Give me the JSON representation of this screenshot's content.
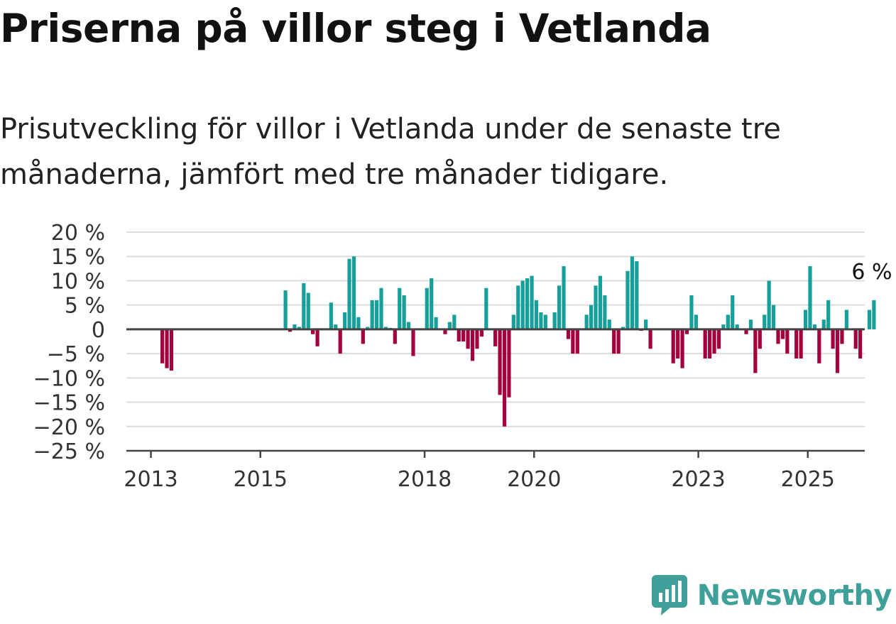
{
  "header": {
    "title": "Priserna på villor steg i Vetlanda",
    "subtitle": "Prisutveckling för villor i Vetlanda under de senaste tre månaderna, jämfört med tre månader tidigare."
  },
  "brand": {
    "name": "Newsworthy",
    "icon": "newsworthy-logo-icon"
  },
  "colors": {
    "positive": "#16a099",
    "negative": "#a3003d",
    "grid": "#dcdcdc",
    "axis": "#444444"
  },
  "chart_data": {
    "type": "bar",
    "title": "Priserna på villor steg i Vetlanda",
    "ylabel": "",
    "xlabel": "",
    "ylim": [
      -25,
      20
    ],
    "yticks": [
      20,
      15,
      10,
      5,
      0,
      -5,
      -10,
      -15,
      -20,
      -25
    ],
    "ytick_labels": [
      "20 %",
      "15 %",
      "10 %",
      "5 %",
      "0",
      "−5 %",
      "−10 %",
      "−15 %",
      "−20 %",
      "−25 %"
    ],
    "xticks": [
      2013,
      2015,
      2018,
      2020,
      2023,
      2025
    ],
    "xtick_labels": [
      "2013",
      "2015",
      "2018",
      "2020",
      "2023",
      "2025"
    ],
    "grid": true,
    "last_value_label": "6 %",
    "x_start": "2012-10",
    "period": "month",
    "values": [
      null,
      null,
      null,
      null,
      null,
      -7,
      -8,
      -8.5,
      null,
      null,
      null,
      null,
      null,
      null,
      null,
      null,
      null,
      null,
      null,
      null,
      null,
      null,
      null,
      null,
      null,
      null,
      null,
      null,
      null,
      null,
      null,
      null,
      8,
      -0.5,
      1,
      0.5,
      9.5,
      7.5,
      -1,
      -3.5,
      null,
      null,
      5.5,
      1,
      -5,
      3.5,
      14.5,
      15,
      2.5,
      -3,
      0.5,
      6,
      6,
      8.5,
      0.5,
      0.3,
      -3,
      8.5,
      7,
      1.5,
      -5.5,
      null,
      null,
      8.5,
      10.5,
      2.5,
      null,
      -1,
      1.5,
      3,
      -2.5,
      -2.5,
      -4,
      -6.5,
      -4,
      -1.5,
      8.5,
      null,
      -3.5,
      -13.5,
      -20,
      -14,
      3,
      9,
      10,
      10.5,
      11,
      6,
      3.5,
      3,
      null,
      3.5,
      9,
      13,
      -2,
      -5,
      -5,
      null,
      3,
      5,
      9,
      11,
      7,
      2,
      -5,
      -5,
      0.5,
      12,
      15,
      14,
      -0.3,
      2,
      -4,
      null,
      null,
      null,
      null,
      -7,
      -6,
      -8,
      -1,
      7,
      3,
      null,
      -6,
      -6,
      -5,
      -4,
      1,
      3,
      7,
      1,
      null,
      -1,
      2,
      -9,
      -4,
      3,
      10,
      5,
      -3,
      -2,
      -5,
      null,
      -6,
      -6,
      4,
      13,
      1,
      -7,
      2,
      6,
      -4,
      -9,
      -3,
      4,
      null,
      -4,
      -6,
      null,
      4,
      6
    ]
  }
}
